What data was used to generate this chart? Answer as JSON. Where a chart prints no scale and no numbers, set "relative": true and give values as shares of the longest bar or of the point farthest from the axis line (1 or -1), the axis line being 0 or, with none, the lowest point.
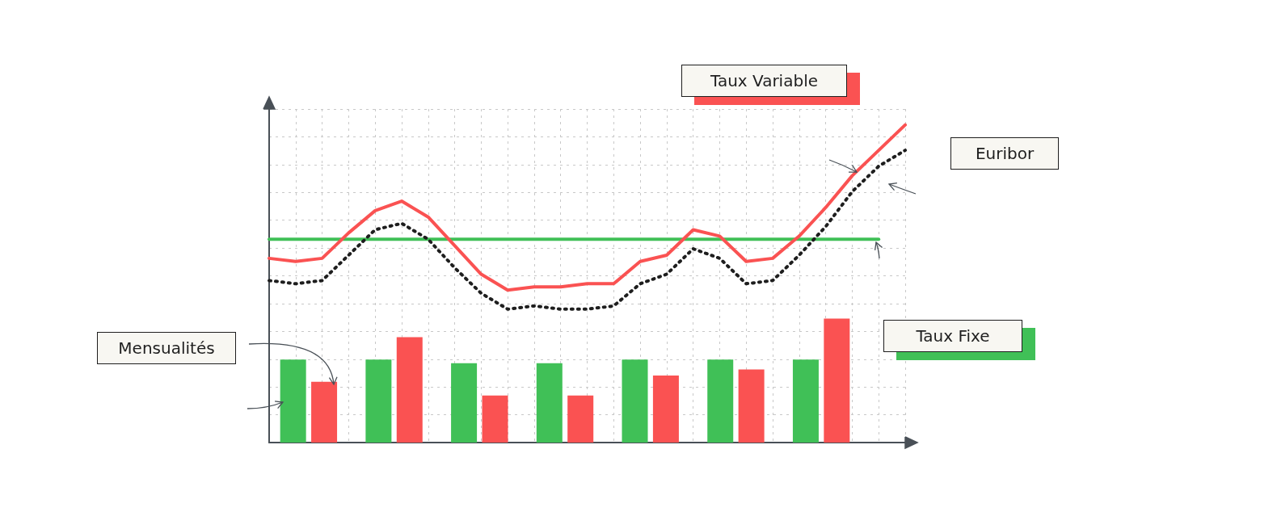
{
  "chart_data": [
    {
      "type": "bar",
      "relative": true,
      "categories": [
        null,
        null,
        null,
        null,
        null,
        null,
        null
      ],
      "annotations": [
        "Mensualités"
      ],
      "series": [
        {
          "color": "#40c057",
          "values": [
            0.67,
            0.67,
            0.64,
            0.64,
            0.67,
            0.67,
            0.67
          ]
        },
        {
          "color": "#fa5252",
          "values": [
            0.49,
            0.85,
            0.38,
            0.38,
            0.54,
            0.59,
            1
          ]
        }
      ]
    },
    {
      "type": "line",
      "relative": true,
      "grid": true,
      "marker": "none",
      "categories": [
        null,
        null,
        null,
        null,
        null,
        null,
        null,
        null,
        null,
        null,
        null,
        null,
        null,
        null,
        null,
        null,
        null,
        null,
        null,
        null,
        null,
        null,
        null,
        null,
        null
      ],
      "series": [
        {
          "name": "Taux Fixe",
          "color": "#40c057",
          "values": [
            0.64,
            0.64,
            0.64,
            0.64,
            0.64,
            0.64,
            0.64,
            0.64,
            0.64,
            0.64,
            0.64,
            0.64,
            0.64,
            0.64,
            0.64,
            0.64,
            0.64,
            0.64,
            0.64,
            0.64,
            0.64,
            0.64,
            0.64,
            0.64,
            null
          ]
        },
        {
          "name": "Taux Variable",
          "color": "#fa5252",
          "values": [
            0.58,
            0.57,
            0.58,
            0.66,
            0.73,
            0.76,
            0.71,
            0.62,
            0.53,
            0.48,
            0.49,
            0.49,
            0.5,
            0.5,
            0.57,
            0.59,
            0.67,
            0.65,
            0.57,
            0.58,
            0.65,
            0.74,
            0.84,
            0.92,
            1
          ]
        },
        {
          "name": "Euribor",
          "color": "#1e1e1e",
          "line_style": "dotted",
          "values": [
            0.51,
            0.5,
            0.51,
            0.59,
            0.67,
            0.69,
            0.64,
            0.55,
            0.47,
            0.42,
            0.43,
            0.42,
            0.42,
            0.43,
            0.5,
            0.53,
            0.61,
            0.58,
            0.5,
            0.51,
            0.59,
            0.68,
            0.79,
            0.87,
            0.92
          ]
        }
      ]
    }
  ]
}
